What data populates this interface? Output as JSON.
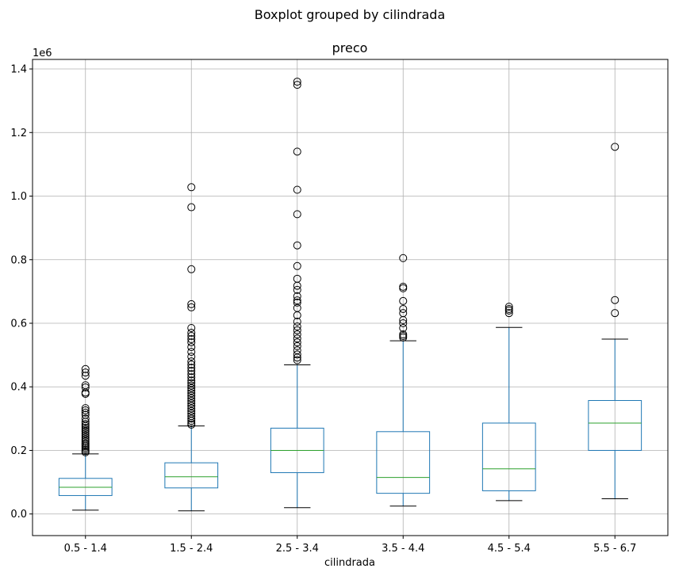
{
  "chart_data": {
    "type": "box",
    "suptitle": "Boxplot grouped by cilindrada",
    "title": "preco",
    "xlabel": "cilindrada",
    "ylabel": "",
    "y_offset_label": "1e6",
    "ylim": [
      -0.068,
      1.43
    ],
    "yticks": [
      0.0,
      0.2,
      0.4,
      0.6,
      0.8,
      1.0,
      1.2,
      1.4
    ],
    "ytick_labels": [
      "0.0",
      "0.2",
      "0.4",
      "0.6",
      "0.8",
      "1.0",
      "1.2",
      "1.4"
    ],
    "grid": true,
    "box_color": "#1f77b4",
    "median_color": "#2ca02c",
    "categories": [
      "0.5 - 1.4",
      "1.5 - 2.4",
      "2.5 - 3.4",
      "3.5 - 4.4",
      "4.5 - 5.4",
      "5.5 - 6.7"
    ],
    "boxes": [
      {
        "category": "0.5 - 1.4",
        "whisker_low": 0.012,
        "q1": 0.058,
        "median": 0.084,
        "q3": 0.112,
        "whisker_high": 0.189,
        "outliers": [
          0.456,
          0.445,
          0.435,
          0.405,
          0.398,
          0.382,
          0.378,
          0.333,
          0.326,
          0.319,
          0.312,
          0.3,
          0.29,
          0.283,
          0.277,
          0.271,
          0.265,
          0.259,
          0.253,
          0.247,
          0.241,
          0.235,
          0.229,
          0.223,
          0.218,
          0.213,
          0.208,
          0.203,
          0.198,
          0.194
        ]
      },
      {
        "category": "1.5 - 2.4",
        "whisker_low": 0.01,
        "q1": 0.082,
        "median": 0.117,
        "q3": 0.161,
        "whisker_high": 0.277,
        "outliers": [
          1.028,
          0.965,
          0.77,
          0.66,
          0.65,
          0.585,
          0.57,
          0.56,
          0.55,
          0.54,
          0.525,
          0.51,
          0.495,
          0.48,
          0.47,
          0.46,
          0.45,
          0.44,
          0.43,
          0.42,
          0.412,
          0.404,
          0.396,
          0.388,
          0.38,
          0.372,
          0.364,
          0.356,
          0.348,
          0.34,
          0.332,
          0.324,
          0.316,
          0.308,
          0.3,
          0.293,
          0.286,
          0.281
        ]
      },
      {
        "category": "2.5 - 3.4",
        "whisker_low": 0.02,
        "q1": 0.13,
        "median": 0.2,
        "q3": 0.27,
        "whisker_high": 0.469,
        "outliers": [
          1.36,
          1.35,
          1.14,
          1.02,
          0.943,
          0.845,
          0.78,
          0.74,
          0.718,
          0.705,
          0.685,
          0.672,
          0.665,
          0.648,
          0.625,
          0.605,
          0.59,
          0.578,
          0.565,
          0.552,
          0.54,
          0.528,
          0.515,
          0.502,
          0.492,
          0.484
        ]
      },
      {
        "category": "3.5 - 4.4",
        "whisker_low": 0.025,
        "q1": 0.065,
        "median": 0.115,
        "q3": 0.259,
        "whisker_high": 0.545,
        "outliers": [
          0.805,
          0.715,
          0.71,
          0.67,
          0.645,
          0.632,
          0.61,
          0.6,
          0.585,
          0.565,
          0.56,
          0.555
        ]
      },
      {
        "category": "4.5 - 5.4",
        "whisker_low": 0.042,
        "q1": 0.073,
        "median": 0.142,
        "q3": 0.286,
        "whisker_high": 0.587,
        "outliers": [
          0.652,
          0.645,
          0.64,
          0.632
        ]
      },
      {
        "category": "5.5 - 6.7",
        "whisker_low": 0.048,
        "q1": 0.2,
        "median": 0.286,
        "q3": 0.357,
        "whisker_high": 0.55,
        "outliers": [
          1.155,
          0.673,
          0.632
        ]
      }
    ]
  }
}
